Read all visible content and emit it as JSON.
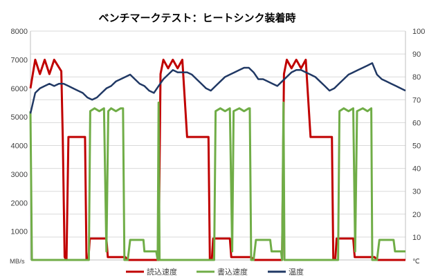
{
  "chart_data": {
    "type": "line",
    "title": "ベンチマークテスト：ヒートシンク装着時",
    "y_left": {
      "unit": "MB/s",
      "ticks": [
        "8000",
        "7000",
        "6000",
        "5000",
        "4000",
        "3000",
        "2000",
        "1000"
      ],
      "ylim": [
        0,
        8000
      ]
    },
    "y_right": {
      "unit": "℃",
      "ticks": [
        "100",
        "90",
        "80",
        "70",
        "60",
        "50",
        "40",
        "30",
        "20",
        "10"
      ],
      "ylim": [
        0,
        100
      ]
    },
    "grid": true,
    "legend_position": "bottom",
    "series": [
      {
        "name": "読込速度",
        "axis": "left",
        "color": "#c00000",
        "points": [
          [
            0,
            6000
          ],
          [
            0.5,
            6500
          ],
          [
            1,
            7000
          ],
          [
            2,
            6500
          ],
          [
            3,
            7000
          ],
          [
            4,
            6500
          ],
          [
            5,
            7000
          ],
          [
            6.5,
            6600
          ],
          [
            6.8,
            4300
          ],
          [
            7.2,
            100
          ],
          [
            7.6,
            0
          ],
          [
            8,
            4300
          ],
          [
            11.5,
            4300
          ],
          [
            11.8,
            0
          ],
          [
            12.2,
            0
          ],
          [
            12.5,
            750
          ],
          [
            16,
            750
          ],
          [
            16.3,
            100
          ],
          [
            20,
            100
          ],
          [
            20.5,
            0
          ],
          [
            27,
            0
          ],
          [
            27.4,
            6500
          ],
          [
            28,
            7000
          ],
          [
            29,
            6700
          ],
          [
            30,
            7000
          ],
          [
            31,
            6700
          ],
          [
            32,
            7000
          ],
          [
            33,
            4300
          ],
          [
            37.5,
            4300
          ],
          [
            37.8,
            0
          ],
          [
            38.2,
            0
          ],
          [
            38.5,
            750
          ],
          [
            42,
            750
          ],
          [
            42.3,
            100
          ],
          [
            46.5,
            100
          ],
          [
            47,
            0
          ],
          [
            53,
            0
          ],
          [
            53.4,
            6500
          ],
          [
            54,
            7000
          ],
          [
            55,
            6700
          ],
          [
            56,
            7000
          ],
          [
            57,
            6700
          ],
          [
            58,
            7000
          ],
          [
            59,
            4300
          ],
          [
            63.5,
            4300
          ],
          [
            63.8,
            0
          ],
          [
            64.2,
            0
          ],
          [
            64.5,
            750
          ],
          [
            68,
            750
          ],
          [
            68.3,
            100
          ],
          [
            72.5,
            100
          ],
          [
            73,
            0
          ],
          [
            79,
            0
          ]
        ]
      },
      {
        "name": "書込速度",
        "axis": "left",
        "color": "#70ad47",
        "points": [
          [
            0,
            5200
          ],
          [
            0.3,
            0
          ],
          [
            12.3,
            0
          ],
          [
            12.6,
            5200
          ],
          [
            13.5,
            5300
          ],
          [
            14.5,
            5200
          ],
          [
            15.5,
            5300
          ],
          [
            16,
            300
          ],
          [
            16.4,
            5200
          ],
          [
            17,
            5300
          ],
          [
            18,
            5200
          ],
          [
            19,
            5300
          ],
          [
            19.5,
            5300
          ],
          [
            19.8,
            0
          ],
          [
            20.5,
            0
          ],
          [
            21,
            700
          ],
          [
            23.8,
            700
          ],
          [
            24,
            300
          ],
          [
            26.5,
            300
          ],
          [
            26.8,
            0
          ],
          [
            27,
            5500
          ],
          [
            27.2,
            0
          ],
          [
            38.7,
            0
          ],
          [
            39,
            5200
          ],
          [
            40,
            5300
          ],
          [
            41,
            5200
          ],
          [
            42,
            5300
          ],
          [
            42.5,
            300
          ],
          [
            42.8,
            5200
          ],
          [
            44,
            5300
          ],
          [
            45,
            5200
          ],
          [
            46,
            5300
          ],
          [
            46.2,
            5300
          ],
          [
            46.5,
            0
          ],
          [
            47,
            0
          ],
          [
            47.5,
            700
          ],
          [
            50.5,
            700
          ],
          [
            50.8,
            300
          ],
          [
            52.8,
            300
          ],
          [
            53,
            0
          ],
          [
            53.3,
            5500
          ],
          [
            53.5,
            0
          ],
          [
            64.8,
            0
          ],
          [
            65.1,
            5200
          ],
          [
            66,
            5300
          ],
          [
            67,
            5200
          ],
          [
            68,
            5300
          ],
          [
            68.4,
            300
          ],
          [
            68.8,
            5200
          ],
          [
            70,
            5300
          ],
          [
            71,
            5200
          ],
          [
            71.8,
            5300
          ],
          [
            72,
            0
          ],
          [
            73,
            0
          ],
          [
            73.5,
            700
          ],
          [
            76.5,
            700
          ],
          [
            76.8,
            300
          ],
          [
            79,
            300
          ]
        ]
      },
      {
        "name": "温度",
        "axis": "right",
        "color": "#203864",
        "points": [
          [
            0,
            64
          ],
          [
            1,
            73
          ],
          [
            2,
            75
          ],
          [
            3,
            76
          ],
          [
            4,
            77
          ],
          [
            5,
            76
          ],
          [
            6,
            77
          ],
          [
            7,
            77
          ],
          [
            8,
            76
          ],
          [
            9,
            75
          ],
          [
            10,
            74
          ],
          [
            11,
            73
          ],
          [
            12,
            71
          ],
          [
            13,
            70
          ],
          [
            14,
            71
          ],
          [
            15,
            73
          ],
          [
            16,
            75
          ],
          [
            17,
            76
          ],
          [
            18,
            78
          ],
          [
            19,
            79
          ],
          [
            20,
            80
          ],
          [
            21,
            81
          ],
          [
            22,
            79
          ],
          [
            23,
            77
          ],
          [
            24,
            76
          ],
          [
            25,
            74
          ],
          [
            26,
            73
          ],
          [
            27,
            76
          ],
          [
            28,
            79
          ],
          [
            29,
            81
          ],
          [
            30,
            83
          ],
          [
            31,
            82
          ],
          [
            32,
            82
          ],
          [
            33,
            82
          ],
          [
            34,
            81
          ],
          [
            35,
            79
          ],
          [
            36,
            77
          ],
          [
            37,
            75
          ],
          [
            38,
            74
          ],
          [
            39,
            76
          ],
          [
            40,
            78
          ],
          [
            41,
            80
          ],
          [
            42,
            81
          ],
          [
            43,
            82
          ],
          [
            44,
            83
          ],
          [
            45,
            84
          ],
          [
            46,
            84
          ],
          [
            47,
            82
          ],
          [
            48,
            79
          ],
          [
            49,
            79
          ],
          [
            50,
            78
          ],
          [
            51,
            77
          ],
          [
            52,
            76
          ],
          [
            53,
            78
          ],
          [
            54,
            80
          ],
          [
            55,
            82
          ],
          [
            56,
            83
          ],
          [
            57,
            83
          ],
          [
            58,
            82
          ],
          [
            59,
            81
          ],
          [
            60,
            80
          ],
          [
            61,
            78
          ],
          [
            62,
            76
          ],
          [
            63,
            74
          ],
          [
            64,
            75
          ],
          [
            65,
            77
          ],
          [
            66,
            79
          ],
          [
            67,
            81
          ],
          [
            68,
            82
          ],
          [
            69,
            83
          ],
          [
            70,
            84
          ],
          [
            71,
            85
          ],
          [
            72,
            86
          ],
          [
            73,
            81
          ],
          [
            74,
            79
          ],
          [
            75,
            78
          ],
          [
            76,
            77
          ],
          [
            77,
            76
          ],
          [
            78,
            75
          ],
          [
            79,
            74
          ]
        ]
      }
    ],
    "xlim": [
      0,
      79
    ]
  }
}
